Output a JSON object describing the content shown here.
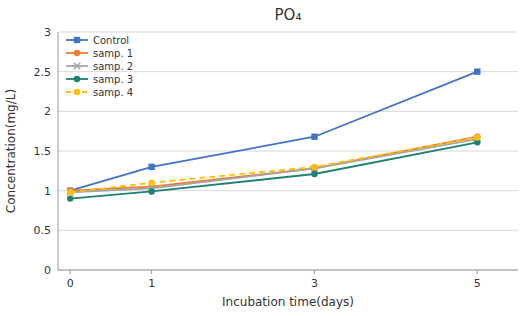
{
  "chart_data": {
    "type": "line",
    "title": "PO₄",
    "xlabel": "Incubation time(days)",
    "ylabel": "Concentration(mg/L)",
    "x": [
      0,
      1,
      3,
      5
    ],
    "series": [
      {
        "name": "Control",
        "color": "#4472C4",
        "marker": "square",
        "line_style": "solid",
        "values": [
          1.0,
          1.3,
          1.68,
          2.5
        ]
      },
      {
        "name": "samp. 1",
        "color": "#ED7D31",
        "marker": "circle",
        "line_style": "solid",
        "values": [
          1.0,
          1.05,
          1.28,
          1.68
        ]
      },
      {
        "name": "samp. 2",
        "color": "#A5A5A5",
        "marker": "x",
        "line_style": "solid",
        "values": [
          0.98,
          1.03,
          1.28,
          1.65
        ]
      },
      {
        "name": "samp. 3",
        "color": "#1E8173",
        "marker": "circle",
        "line_style": "solid",
        "values": [
          0.9,
          0.99,
          1.21,
          1.61
        ]
      },
      {
        "name": "samp. 4",
        "color": "#FFC000",
        "marker": "circle",
        "line_style": "dashed",
        "values": [
          0.98,
          1.1,
          1.3,
          1.67
        ]
      }
    ],
    "xlim": [
      -0.15,
      5.5
    ],
    "ylim": [
      0,
      3.0
    ],
    "xticks": [
      0,
      1,
      3,
      5
    ],
    "yticks": [
      0,
      0.5,
      1.0,
      1.5,
      2.0,
      2.5,
      3.0
    ],
    "grid": "y",
    "legend": "upper left"
  }
}
